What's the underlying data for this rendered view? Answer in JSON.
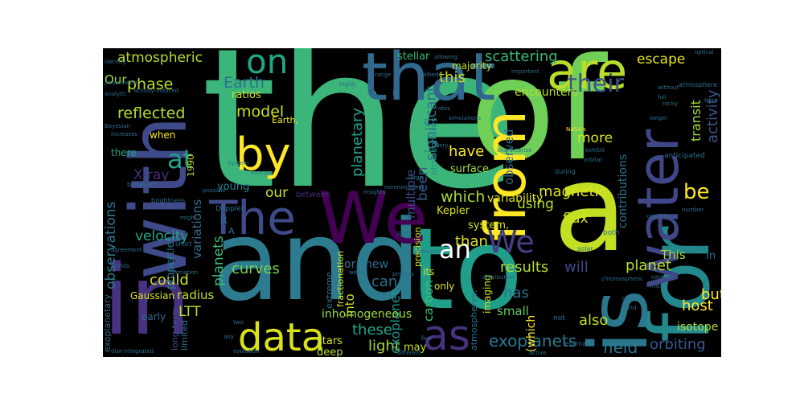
{
  "words": [
    {
      "text": "the",
      "color": "#3bb57a",
      "rotated": false
    },
    {
      "text": "of",
      "color": "#6fcf57",
      "rotated": false
    },
    {
      "text": "and",
      "color": "#2c7b8e",
      "rotated": false
    },
    {
      "text": "to",
      "color": "#1f9e89",
      "rotated": false
    },
    {
      "text": "a",
      "color": "#c2df23",
      "rotated": false
    },
    {
      "text": "for",
      "color": "#23888e",
      "rotated": true
    },
    {
      "text": "is",
      "color": "#2a788e",
      "rotated": true
    },
    {
      "text": "in",
      "color": "#46327e",
      "rotated": false
    },
    {
      "text": "with",
      "color": "#3e4a89",
      "rotated": true
    },
    {
      "text": "We",
      "color": "#440154",
      "rotated": false
    },
    {
      "text": "that",
      "color": "#31688e",
      "rotated": false
    },
    {
      "text": "from",
      "color": "#fde725",
      "rotated": true
    },
    {
      "text": "are",
      "color": "#b8de29",
      "rotated": false
    },
    {
      "text": "water",
      "color": "#3f4788",
      "rotated": true
    },
    {
      "text": "by",
      "color": "#fde725",
      "rotated": false
    },
    {
      "text": "The",
      "color": "#3e4a89",
      "rotated": false
    },
    {
      "text": "on",
      "color": "#21a685",
      "rotated": false
    },
    {
      "text": "We",
      "color": "#433e85",
      "rotated": false
    },
    {
      "text": "as",
      "color": "#46327e",
      "rotated": false
    },
    {
      "text": "data",
      "color": "#d8e219",
      "rotated": false
    },
    {
      "text": "be",
      "color": "#fde725",
      "rotated": false
    },
    {
      "text": "at",
      "color": "#20a386",
      "rotated": false
    },
    {
      "text": "their",
      "color": "#3b528b",
      "rotated": false
    },
    {
      "text": "an",
      "color": "#ffffff",
      "rotated": false
    },
    {
      "text": "escape",
      "color": "#e5e419",
      "rotated": false
    },
    {
      "text": "atmospheric",
      "color": "#b5de2b",
      "rotated": false
    },
    {
      "text": "scattering",
      "color": "#35b779",
      "rotated": false
    },
    {
      "text": "model",
      "color": "#c8e020",
      "rotated": false
    },
    {
      "text": "Earth",
      "color": "#2d708e",
      "rotated": false
    },
    {
      "text": "phase",
      "color": "#b8de29",
      "rotated": false
    },
    {
      "text": "reflected",
      "color": "#b5de2b",
      "rotated": false
    },
    {
      "text": "Our",
      "color": "#9fda3a",
      "rotated": false
    },
    {
      "text": "this",
      "color": "#d2e21b",
      "rotated": false
    },
    {
      "text": "more",
      "color": "#d8e219",
      "rotated": false
    },
    {
      "text": "have",
      "color": "#fde725",
      "rotated": false
    },
    {
      "text": "magnetic",
      "color": "#dde318",
      "rotated": false
    },
    {
      "text": "which",
      "color": "#a8db34",
      "rotated": false
    },
    {
      "text": "using",
      "color": "#b5de2b",
      "rotated": false
    },
    {
      "text": "Kepler",
      "color": "#d8e219",
      "rotated": false
    },
    {
      "text": "flux",
      "color": "#d2e21b",
      "rotated": false
    },
    {
      "text": "significant",
      "color": "#2d708e",
      "rotated": true
    },
    {
      "text": "planetary",
      "color": "#20a386",
      "rotated": true
    },
    {
      "text": "activity",
      "color": "#3b528b",
      "rotated": true
    },
    {
      "text": "transit",
      "color": "#9fda3a",
      "rotated": true
    },
    {
      "text": "observations",
      "color": "#2a788e",
      "rotated": true
    },
    {
      "text": "planets",
      "color": "#3bbb75",
      "rotated": true
    },
    {
      "text": "X-ray",
      "color": "#472d7b",
      "rotated": false
    },
    {
      "text": "could",
      "color": "#c8e020",
      "rotated": false
    },
    {
      "text": "Gaussian",
      "color": "#dde318",
      "rotated": false
    },
    {
      "text": "radius",
      "color": "#c2df23",
      "rotated": false
    },
    {
      "text": "curves",
      "color": "#7ad151",
      "rotated": false
    },
    {
      "text": "can",
      "color": "#2d708e",
      "rotated": false
    },
    {
      "text": "than",
      "color": "#dde318",
      "rotated": false
    },
    {
      "text": "results",
      "color": "#b5de2b",
      "rotated": false
    },
    {
      "text": "will",
      "color": "#3e4a89",
      "rotated": false
    },
    {
      "text": "planet",
      "color": "#b8de29",
      "rotated": false
    },
    {
      "text": "This",
      "color": "#a5db36",
      "rotated": false
    },
    {
      "text": "has",
      "color": "#2c728e",
      "rotated": false
    },
    {
      "text": "also",
      "color": "#c2df23",
      "rotated": false
    },
    {
      "text": "but",
      "color": "#fde725",
      "rotated": false
    },
    {
      "text": "host",
      "color": "#fde725",
      "rotated": false
    },
    {
      "text": "light",
      "color": "#a0da39",
      "rotated": false
    },
    {
      "text": "these",
      "color": "#22a884",
      "rotated": false
    },
    {
      "text": "exoplanets",
      "color": "#2a788e",
      "rotated": false
    },
    {
      "text": "orbiting",
      "color": "#39568c",
      "rotated": false
    },
    {
      "text": "field",
      "color": "#2a788e",
      "rotated": false
    },
    {
      "text": "isotope",
      "color": "#addc30",
      "rotated": false
    },
    {
      "text": "LTT",
      "color": "#b5de2b",
      "rotated": false
    },
    {
      "text": "our",
      "color": "#c8e020",
      "rotated": false
    },
    {
      "text": "been",
      "color": "#38598c",
      "rotated": true
    },
    {
      "text": "multiple",
      "color": "#3e4a89",
      "rotated": true
    },
    {
      "text": "into",
      "color": "#c2df23",
      "rotated": true
    },
    {
      "text": "exoplanet",
      "color": "#21918c",
      "rotated": true
    },
    {
      "text": "carbon",
      "color": "#3bbb75",
      "rotated": true
    },
    {
      "text": "observed",
      "color": "#31688e",
      "rotated": true
    },
    {
      "text": "contributions",
      "color": "#2c728e",
      "rotated": true
    },
    {
      "text": "variations",
      "color": "#2e6e8e",
      "rotated": true
    },
    {
      "text": "properties",
      "color": "#2a788e",
      "rotated": true
    },
    {
      "text": "velocity",
      "color": "#22a884",
      "rotated": false
    },
    {
      "text": "stars",
      "color": "#d8e219",
      "rotated": false
    },
    {
      "text": "deep",
      "color": "#b5de2b",
      "rotated": false
    },
    {
      "text": "small",
      "color": "#65cb5e",
      "rotated": false
    },
    {
      "text": "only",
      "color": "#d8e219",
      "rotated": false
    },
    {
      "text": "variability",
      "color": "#d8e219",
      "rotated": false
    },
    {
      "text": "encounters",
      "color": "#b5de2b",
      "rotated": false
    },
    {
      "text": "majority",
      "color": "#bddf26",
      "rotated": false
    },
    {
      "text": "stellar",
      "color": "#35b779",
      "rotated": false
    },
    {
      "text": "inhomogeneous",
      "color": "#9bd93c",
      "rotated": false
    },
    {
      "text": "surface",
      "color": "#a0da39",
      "rotated": false
    },
    {
      "text": "system,",
      "color": "#c8e020",
      "rotated": false
    },
    {
      "text": "or",
      "color": "#2e6e8e",
      "rotated": false
    },
    {
      "text": "new",
      "color": "#2e6e8e",
      "rotated": false
    },
    {
      "text": "young",
      "color": "#26828e",
      "rotated": false
    },
    {
      "text": "when",
      "color": "#fde725",
      "rotated": false
    },
    {
      "text": "over",
      "color": "#3e4a89",
      "rotated": false
    },
    {
      "text": "there",
      "color": "#22a884",
      "rotated": false
    },
    {
      "text": "may",
      "color": "#c2df23",
      "rotated": false
    },
    {
      "text": "early",
      "color": "#2e6e8e",
      "rotated": false
    },
    {
      "text": "ratios",
      "color": "#d2e21b",
      "rotated": false
    },
    {
      "text": "1990",
      "color": "#c2df23",
      "rotated": true
    },
    {
      "text": "(which",
      "color": "#fde725",
      "rotated": true
    },
    {
      "text": "imaging",
      "color": "#d2e21b",
      "rotated": true
    },
    {
      "text": "precision",
      "color": "#d8e219",
      "rotated": true
    },
    {
      "text": "atmospheres",
      "color": "#21918c",
      "rotated": true
    },
    {
      "text": "atmospheres,",
      "color": "#2e6e8e",
      "rotated": true
    },
    {
      "text": "its",
      "color": "#d8e219",
      "rotated": false
    },
    {
      "text": "fractionation",
      "color": "#dde318",
      "rotated": true
    },
    {
      "text": "extreme",
      "color": "#2e6e8e",
      "rotated": true
    },
    {
      "text": "long-term",
      "color": "#3b528b",
      "rotated": true
    },
    {
      "text": "exoplanetary",
      "color": "#2e6e8e",
      "rotated": true
    },
    {
      "text": "limited",
      "color": "#2e6e8e",
      "rotated": true
    },
    {
      "text": "Earth,",
      "color": "#fde725",
      "rotated": false
    },
    {
      "text": "R",
      "color": "#2e6e8e",
      "rotated": false
    },
    {
      "text": "A",
      "color": "#2e6e8e",
      "rotated": false
    },
    {
      "text": "In",
      "color": "#2e6e8e",
      "rotated": false
    },
    {
      "text": "between",
      "color": "#472d7b",
      "rotated": false
    },
    {
      "text": "it",
      "color": "#2e6e8e",
      "rotated": false
    },
    {
      "text": "NASA's",
      "color": "#fde725",
      "rotated": false
    },
    {
      "text": "Doppler",
      "color": "#2e6e8e",
      "rotated": false
    },
    {
      "text": "System",
      "color": "#2e6e8e",
      "rotated": false
    },
    {
      "text": "function",
      "color": "#2e6e8e",
      "rotated": false
    },
    {
      "text": "anticipated",
      "color": "#2e6e8e",
      "rotated": false
    },
    {
      "text": "during",
      "color": "#2e6e8e",
      "rotated": false
    },
    {
      "text": "characterize",
      "color": "#2e6e8e",
      "rotated": false
    },
    {
      "text": "exhibit",
      "color": "#2e6e8e",
      "rotated": false
    },
    {
      "text": "orbital",
      "color": "#2e6e8e",
      "rotated": false
    },
    {
      "text": "solar",
      "color": "#2e6e8e",
      "rotated": false
    },
    {
      "text": "both",
      "color": "#2e6e8e",
      "rotated": false
    },
    {
      "text": "not",
      "color": "#2e6e8e",
      "rotated": false
    },
    {
      "text": "distribution",
      "color": "#2e6e8e",
      "rotated": false
    },
    {
      "text": "most",
      "color": "#2e6e8e",
      "rotated": false
    },
    {
      "text": "rotation",
      "color": "#2e6e8e",
      "rotated": false
    },
    {
      "text": "chromospheric",
      "color": "#2e6e8e",
      "rotated": false
    },
    {
      "text": "show",
      "color": "#2e6e8e",
      "rotated": false
    },
    {
      "text": "find",
      "color": "#2e6e8e",
      "rotated": false
    },
    {
      "text": "estimate",
      "color": "#2e6e8e",
      "rotated": false
    },
    {
      "text": "active",
      "color": "#2e6e8e",
      "rotated": false
    },
    {
      "text": "evolution",
      "color": "#2e6e8e",
      "rotated": false
    },
    {
      "text": "disk-integrated",
      "color": "#2e6e8e",
      "rotated": false
    },
    {
      "text": "two",
      "color": "#2e6e8e",
      "rotated": false
    },
    {
      "text": "any",
      "color": "#2e6e8e",
      "rotated": false
    },
    {
      "text": "five",
      "color": "#2e6e8e",
      "rotated": false
    },
    {
      "text": "study",
      "color": "#2e6e8e",
      "rotated": false
    },
    {
      "text": "process",
      "color": "#2e6e8e",
      "rotated": false
    },
    {
      "text": "weak",
      "color": "#2e6e8e",
      "rotated": false
    },
    {
      "text": "different",
      "color": "#2e6e8e",
      "rotated": false
    },
    {
      "text": "validated",
      "color": "#2e6e8e",
      "rotated": false
    },
    {
      "text": "likely",
      "color": "#2e6e8e",
      "rotated": false
    },
    {
      "text": "brightness",
      "color": "#2e6e8e",
      "rotated": false
    },
    {
      "text": "behavior",
      "color": "#2e6e8e",
      "rotated": false
    },
    {
      "text": "possible",
      "color": "#2e6e8e",
      "rotated": false
    },
    {
      "text": "short",
      "color": "#2e6e8e",
      "rotated": false
    },
    {
      "text": "might",
      "color": "#2e6e8e",
      "rotated": false
    },
    {
      "text": "formation",
      "color": "#2e6e8e",
      "rotated": false
    },
    {
      "text": "worlds",
      "color": "#2e6e8e",
      "rotated": false
    },
    {
      "text": "Bayesian",
      "color": "#2e6e8e",
      "rotated": false
    },
    {
      "text": "analytic",
      "color": "#2e6e8e",
      "rotated": false
    },
    {
      "text": "photometric",
      "color": "#2e6e8e",
      "rotated": false
    },
    {
      "text": "activity-induced",
      "color": "#2e6e8e",
      "rotated": false
    },
    {
      "text": "identify",
      "color": "#2e6e8e",
      "rotated": false
    },
    {
      "text": "increases",
      "color": "#2e6e8e",
      "rotated": false
    },
    {
      "text": "highly",
      "color": "#2e6e8e",
      "rotated": false
    },
    {
      "text": "range",
      "color": "#2e6e8e",
      "rotated": false
    },
    {
      "text": "albedo",
      "color": "#2e6e8e",
      "rotated": false
    },
    {
      "text": "rates",
      "color": "#2e6e8e",
      "rotated": false
    },
    {
      "text": "simulations",
      "color": "#2e6e8e",
      "rotated": false
    },
    {
      "text": "very",
      "color": "#2e6e8e",
      "rotated": false
    },
    {
      "text": "important",
      "color": "#2e6e8e",
      "rotated": false
    },
    {
      "text": "allowing",
      "color": "#2e6e8e",
      "rotated": false
    },
    {
      "text": "optical",
      "color": "#2e6e8e",
      "rotated": false
    },
    {
      "text": "without",
      "color": "#2e6e8e",
      "rotated": false
    },
    {
      "text": "full",
      "color": "#2e6e8e",
      "rotated": false
    },
    {
      "text": "atmosphere",
      "color": "#2e6e8e",
      "rotated": false
    },
    {
      "text": "Here",
      "color": "#2e6e8e",
      "rotated": false
    },
    {
      "text": "rocky",
      "color": "#2e6e8e",
      "rotated": false
    },
    {
      "text": "longer",
      "color": "#2e6e8e",
      "rotated": false
    },
    {
      "text": "number",
      "color": "#2e6e8e",
      "rotated": false
    },
    {
      "text": "conditions",
      "color": "#2e6e8e",
      "rotated": false
    },
    {
      "text": "0.7",
      "color": "#2e6e8e",
      "rotated": false
    },
    {
      "text": "nonmonotonic",
      "color": "#2e6e8e",
      "rotated": false
    },
    {
      "text": "large",
      "color": "#2e6e8e",
      "rotated": false
    },
    {
      "text": "insights",
      "color": "#2e6e8e",
      "rotated": false
    },
    {
      "text": "agreement",
      "color": "#2e6e8e",
      "rotated": false
    }
  ]
}
